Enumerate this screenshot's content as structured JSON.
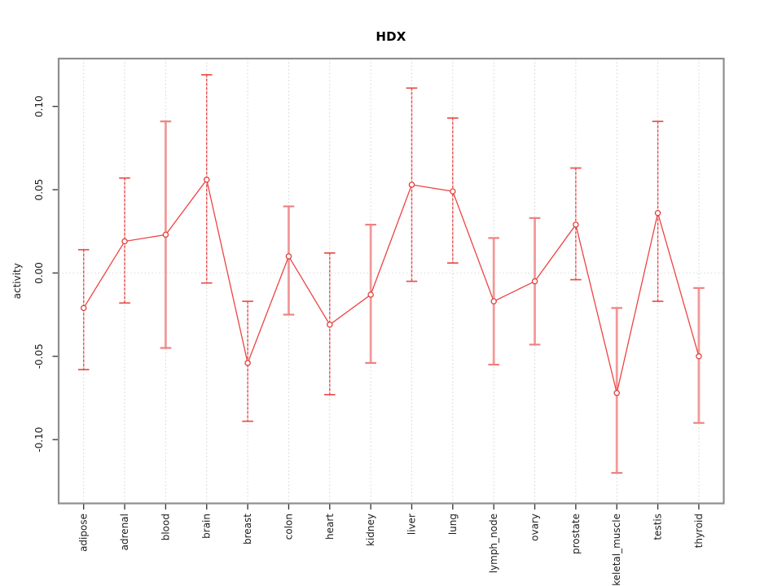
{
  "figure": {
    "title": "HDX",
    "ylabel": "activity"
  },
  "chart_data": {
    "type": "line",
    "subtype": "points-with-error-bars",
    "title": "HDX",
    "xlabel": "",
    "ylabel": "activity",
    "categories": [
      "adipose",
      "adrenal",
      "blood",
      "brain",
      "breast",
      "colon",
      "heart",
      "kidney",
      "liver",
      "lung",
      "lymph_node",
      "ovary",
      "prostate",
      "skeletal_muscle",
      "testis",
      "thyroid"
    ],
    "series": [
      {
        "name": "mean_activity",
        "values": [
          -0.021,
          0.019,
          0.023,
          0.056,
          -0.054,
          0.01,
          -0.031,
          -0.013,
          0.053,
          0.049,
          -0.017,
          -0.005,
          0.029,
          -0.072,
          0.036,
          -0.05
        ]
      },
      {
        "name": "upper_error",
        "values": [
          0.014,
          0.057,
          0.091,
          0.119,
          -0.017,
          0.04,
          0.012,
          0.029,
          0.111,
          0.093,
          0.021,
          0.033,
          0.063,
          -0.021,
          0.091,
          -0.009
        ]
      },
      {
        "name": "lower_error",
        "values": [
          -0.058,
          -0.018,
          -0.045,
          -0.006,
          -0.089,
          -0.025,
          -0.073,
          -0.054,
          -0.005,
          0.006,
          -0.055,
          -0.043,
          -0.004,
          -0.12,
          -0.017,
          -0.09
        ]
      }
    ],
    "ylim": [
      -0.1383,
      0.1287
    ],
    "ytick_labels": [
      "-0.10",
      "-0.05",
      "0.00",
      "0.05",
      "0.10"
    ],
    "ytick_values": [
      -0.1,
      -0.05,
      0.0,
      0.05,
      0.1
    ],
    "grid": {
      "vertical": "dotted line at each category",
      "horizontal": "dotted line at y=0 only"
    },
    "legend": "none",
    "marker": "open-circle",
    "bar_styles": [
      "dashed",
      "dashed",
      "solid",
      "dashed",
      "dashed",
      "solid",
      "dashed",
      "solid",
      "dashed",
      "dashed",
      "solid",
      "solid",
      "dashed",
      "solid",
      "dashed",
      "solid"
    ],
    "colors": {
      "series_line": "#ee4343",
      "marker_stroke": "#e0403c",
      "errorbar_dashed": "#e04343",
      "errorbar_dashed_base": "#f6b5b5",
      "errorbar_solid": "#f19999",
      "cap_dashed": "#e8504c",
      "cap_solid": "#ee8181",
      "gridline": "#d4d4d4",
      "zero_line": "#dcdcdc",
      "frame": "#8e8e8e",
      "tick": "#2f2f2f",
      "text": "#1a1a1a"
    }
  }
}
